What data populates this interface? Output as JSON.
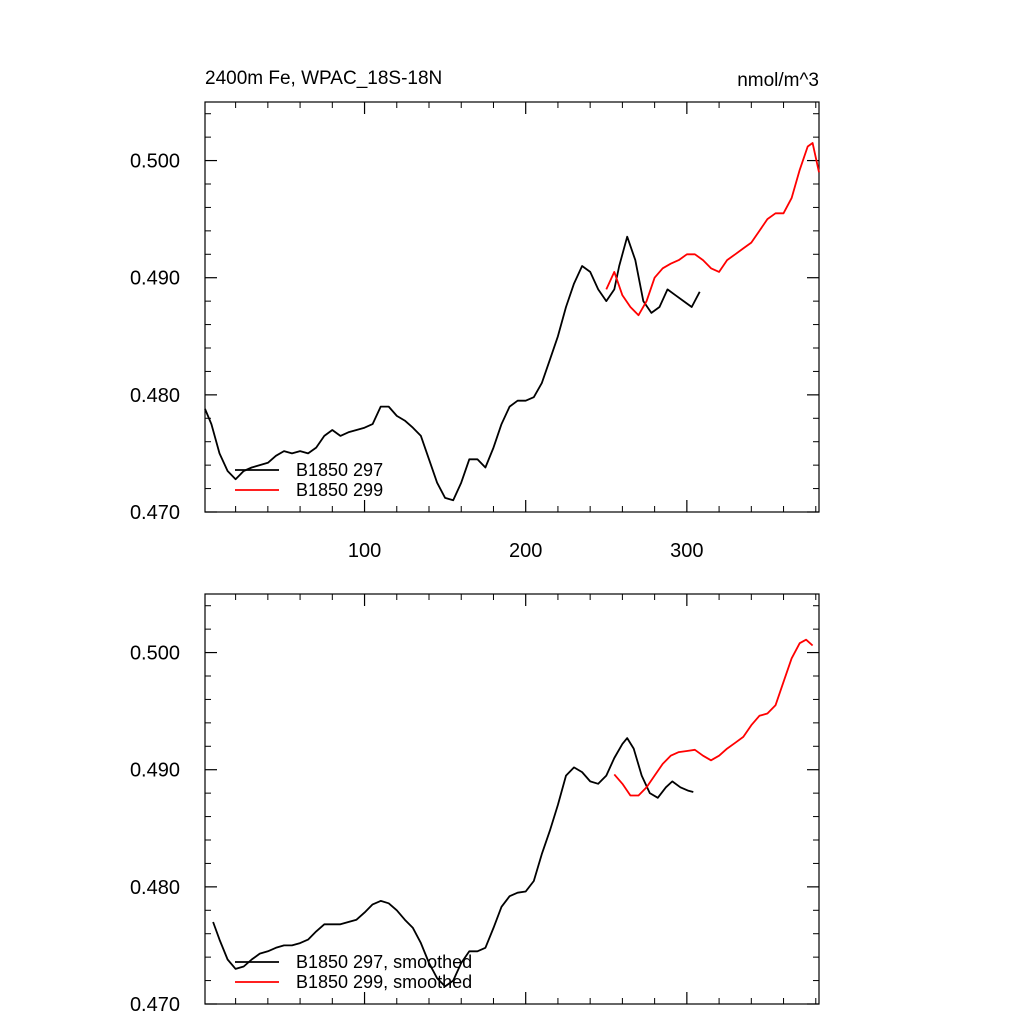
{
  "chart_data": [
    {
      "type": "line",
      "title_left": "2400m Fe, WPAC_18S-18N",
      "title_right": "nmol/m^3",
      "xlim": [
        1,
        382
      ],
      "ylim": [
        0.47,
        0.505
      ],
      "x_tick_labels": [
        "100",
        "200",
        "300"
      ],
      "y_tick_labels": [
        "0.470",
        "0.480",
        "0.490",
        "0.500"
      ],
      "legend_position": "bottom-left",
      "series": [
        {
          "name": "B1850 297",
          "color": "#000000",
          "points": [
            [
              1,
              0.4788
            ],
            [
              5,
              0.4775
            ],
            [
              10,
              0.475
            ],
            [
              15,
              0.4735
            ],
            [
              20,
              0.4728
            ],
            [
              25,
              0.4735
            ],
            [
              30,
              0.4738
            ],
            [
              35,
              0.474
            ],
            [
              40,
              0.4742
            ],
            [
              45,
              0.4748
            ],
            [
              50,
              0.4752
            ],
            [
              55,
              0.475
            ],
            [
              60,
              0.4752
            ],
            [
              65,
              0.475
            ],
            [
              70,
              0.4755
            ],
            [
              75,
              0.4765
            ],
            [
              80,
              0.477
            ],
            [
              85,
              0.4765
            ],
            [
              90,
              0.4768
            ],
            [
              95,
              0.477
            ],
            [
              100,
              0.4772
            ],
            [
              105,
              0.4775
            ],
            [
              110,
              0.479
            ],
            [
              115,
              0.479
            ],
            [
              120,
              0.4782
            ],
            [
              125,
              0.4778
            ],
            [
              130,
              0.4772
            ],
            [
              135,
              0.4765
            ],
            [
              140,
              0.4745
            ],
            [
              145,
              0.4725
            ],
            [
              150,
              0.4712
            ],
            [
              155,
              0.471
            ],
            [
              160,
              0.4725
            ],
            [
              165,
              0.4745
            ],
            [
              170,
              0.4745
            ],
            [
              175,
              0.4738
            ],
            [
              180,
              0.4755
            ],
            [
              185,
              0.4775
            ],
            [
              190,
              0.479
            ],
            [
              195,
              0.4795
            ],
            [
              200,
              0.4795
            ],
            [
              205,
              0.4798
            ],
            [
              210,
              0.481
            ],
            [
              215,
              0.483
            ],
            [
              220,
              0.485
            ],
            [
              225,
              0.4875
            ],
            [
              230,
              0.4895
            ],
            [
              235,
              0.491
            ],
            [
              240,
              0.4905
            ],
            [
              245,
              0.489
            ],
            [
              250,
              0.488
            ],
            [
              255,
              0.489
            ],
            [
              258,
              0.491
            ],
            [
              263,
              0.4935
            ],
            [
              268,
              0.4915
            ],
            [
              273,
              0.488
            ],
            [
              278,
              0.487
            ],
            [
              283,
              0.4875
            ],
            [
              288,
              0.489
            ],
            [
              293,
              0.4885
            ],
            [
              298,
              0.488
            ],
            [
              303,
              0.4875
            ],
            [
              308,
              0.4888
            ]
          ]
        },
        {
          "name": "B1850 299",
          "color": "#ff0000",
          "points": [
            [
              250,
              0.489
            ],
            [
              255,
              0.4905
            ],
            [
              260,
              0.4885
            ],
            [
              265,
              0.4875
            ],
            [
              270,
              0.4868
            ],
            [
              275,
              0.488
            ],
            [
              280,
              0.49
            ],
            [
              285,
              0.4908
            ],
            [
              290,
              0.4912
            ],
            [
              295,
              0.4915
            ],
            [
              300,
              0.492
            ],
            [
              305,
              0.492
            ],
            [
              310,
              0.4915
            ],
            [
              315,
              0.4908
            ],
            [
              320,
              0.4905
            ],
            [
              325,
              0.4915
            ],
            [
              330,
              0.492
            ],
            [
              335,
              0.4925
            ],
            [
              340,
              0.493
            ],
            [
              345,
              0.494
            ],
            [
              350,
              0.495
            ],
            [
              355,
              0.4955
            ],
            [
              360,
              0.4955
            ],
            [
              365,
              0.4968
            ],
            [
              370,
              0.4992
            ],
            [
              375,
              0.5012
            ],
            [
              378,
              0.5015
            ],
            [
              382,
              0.499
            ]
          ]
        }
      ]
    },
    {
      "type": "line",
      "xlim": [
        1,
        382
      ],
      "ylim": [
        0.47,
        0.505
      ],
      "y_tick_labels": [
        "0.470",
        "0.480",
        "0.490",
        "0.500"
      ],
      "legend_position": "bottom-left",
      "series": [
        {
          "name": "B1850 297, smoothed",
          "color": "#000000",
          "points": [
            [
              6,
              0.477
            ],
            [
              10,
              0.4755
            ],
            [
              15,
              0.4738
            ],
            [
              20,
              0.473
            ],
            [
              25,
              0.4732
            ],
            [
              30,
              0.4738
            ],
            [
              35,
              0.4743
            ],
            [
              40,
              0.4745
            ],
            [
              45,
              0.4748
            ],
            [
              50,
              0.475
            ],
            [
              55,
              0.475
            ],
            [
              60,
              0.4752
            ],
            [
              65,
              0.4755
            ],
            [
              70,
              0.4762
            ],
            [
              75,
              0.4768
            ],
            [
              80,
              0.4768
            ],
            [
              85,
              0.4768
            ],
            [
              90,
              0.477
            ],
            [
              95,
              0.4772
            ],
            [
              100,
              0.4778
            ],
            [
              105,
              0.4785
            ],
            [
              110,
              0.4788
            ],
            [
              115,
              0.4786
            ],
            [
              120,
              0.478
            ],
            [
              125,
              0.4772
            ],
            [
              130,
              0.4765
            ],
            [
              135,
              0.4752
            ],
            [
              140,
              0.4735
            ],
            [
              145,
              0.4722
            ],
            [
              150,
              0.4715
            ],
            [
              155,
              0.472
            ],
            [
              160,
              0.4735
            ],
            [
              165,
              0.4745
            ],
            [
              170,
              0.4745
            ],
            [
              175,
              0.4748
            ],
            [
              180,
              0.4765
            ],
            [
              185,
              0.4783
            ],
            [
              190,
              0.4792
            ],
            [
              195,
              0.4795
            ],
            [
              200,
              0.4796
            ],
            [
              205,
              0.4805
            ],
            [
              210,
              0.4828
            ],
            [
              215,
              0.4848
            ],
            [
              220,
              0.487
            ],
            [
              225,
              0.4895
            ],
            [
              230,
              0.4902
            ],
            [
              235,
              0.4898
            ],
            [
              240,
              0.489
            ],
            [
              245,
              0.4888
            ],
            [
              250,
              0.4895
            ],
            [
              255,
              0.491
            ],
            [
              260,
              0.4922
            ],
            [
              263,
              0.4927
            ],
            [
              267,
              0.4918
            ],
            [
              272,
              0.4895
            ],
            [
              277,
              0.488
            ],
            [
              282,
              0.4876
            ],
            [
              287,
              0.4885
            ],
            [
              291,
              0.489
            ],
            [
              296,
              0.4885
            ],
            [
              301,
              0.4882
            ],
            [
              304,
              0.4881
            ]
          ]
        },
        {
          "name": "B1850 299, smoothed",
          "color": "#ff0000",
          "points": [
            [
              255,
              0.4896
            ],
            [
              260,
              0.4888
            ],
            [
              265,
              0.4878
            ],
            [
              270,
              0.4878
            ],
            [
              275,
              0.4885
            ],
            [
              280,
              0.4895
            ],
            [
              285,
              0.4905
            ],
            [
              290,
              0.4912
            ],
            [
              295,
              0.4915
            ],
            [
              300,
              0.4916
            ],
            [
              305,
              0.4917
            ],
            [
              310,
              0.4912
            ],
            [
              315,
              0.4908
            ],
            [
              320,
              0.4912
            ],
            [
              325,
              0.4918
            ],
            [
              330,
              0.4923
            ],
            [
              335,
              0.4928
            ],
            [
              340,
              0.4938
            ],
            [
              345,
              0.4946
            ],
            [
              350,
              0.4948
            ],
            [
              355,
              0.4955
            ],
            [
              360,
              0.4975
            ],
            [
              365,
              0.4995
            ],
            [
              370,
              0.5008
            ],
            [
              374,
              0.5011
            ],
            [
              378,
              0.5006
            ]
          ]
        }
      ]
    }
  ]
}
